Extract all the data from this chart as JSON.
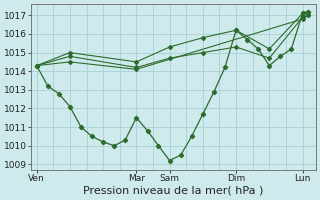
{
  "background_color": "#ceeaed",
  "grid_color": "#aed4d8",
  "line_color": "#2d6b2d",
  "ylim": [
    1008.7,
    1017.6
  ],
  "yticks": [
    1009,
    1010,
    1011,
    1012,
    1013,
    1014,
    1015,
    1016,
    1017
  ],
  "xlabel": "Pression niveau de la mer( hPa )",
  "xlabel_fontsize": 8,
  "tick_fontsize": 6.5,
  "xtick_labels": [
    "Ven",
    "Mar",
    "Sam",
    "Dim",
    "Lun"
  ],
  "xtick_positions": [
    0.0,
    0.375,
    0.5,
    0.75,
    1.0
  ],
  "xlim": [
    -0.02,
    1.05
  ],
  "line1_x": [
    0.0,
    0.042,
    0.083,
    0.125,
    0.167,
    0.208,
    0.25,
    0.292,
    0.333,
    0.375,
    0.417,
    0.458,
    0.5,
    0.542,
    0.583,
    0.625,
    0.667,
    0.708,
    0.75,
    0.792,
    0.833,
    0.875,
    0.917,
    0.958,
    1.0,
    1.02
  ],
  "line1_y": [
    1014.3,
    1013.2,
    1012.8,
    1012.1,
    1011.0,
    1010.5,
    1010.2,
    1010.0,
    1010.3,
    1011.5,
    1010.8,
    1010.0,
    1009.2,
    1009.5,
    1010.5,
    1011.7,
    1012.9,
    1014.2,
    1016.2,
    1015.7,
    1015.2,
    1014.3,
    1014.8,
    1015.2,
    1017.1,
    1017.2
  ],
  "line2_x": [
    0.0,
    0.125,
    0.375,
    0.5,
    0.625,
    0.75,
    0.875,
    1.0,
    1.02
  ],
  "line2_y": [
    1014.3,
    1015.0,
    1014.5,
    1015.3,
    1015.8,
    1016.2,
    1015.2,
    1017.1,
    1017.2
  ],
  "line3_x": [
    0.0,
    0.125,
    0.375,
    0.5,
    0.625,
    0.75,
    0.875,
    1.0,
    1.02
  ],
  "line3_y": [
    1014.3,
    1014.8,
    1014.2,
    1014.7,
    1015.0,
    1015.3,
    1014.7,
    1016.9,
    1017.0
  ],
  "line4_x": [
    0.0,
    0.125,
    0.375,
    1.0,
    1.02
  ],
  "line4_y": [
    1014.3,
    1014.5,
    1014.1,
    1016.8,
    1017.0
  ],
  "vline_positions": [
    0.0,
    0.375,
    0.5,
    0.75,
    1.0
  ]
}
